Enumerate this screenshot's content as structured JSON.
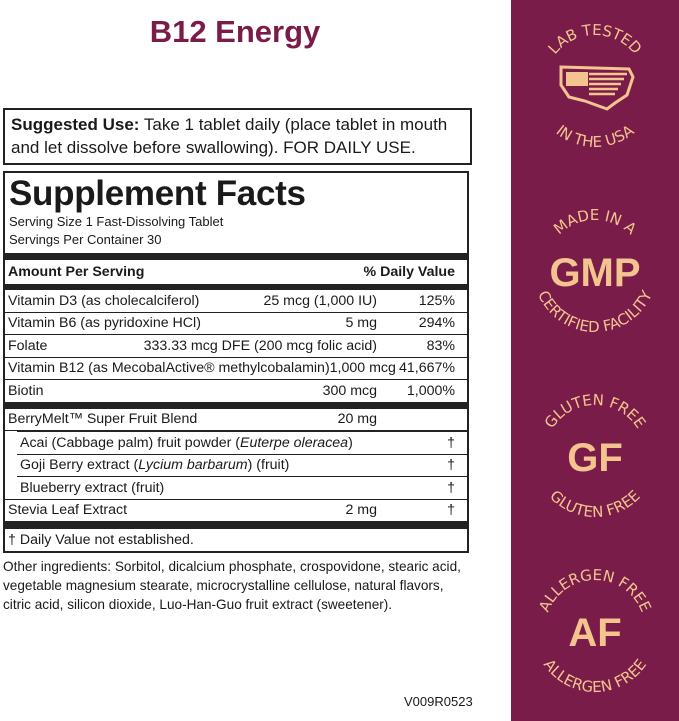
{
  "title": "B12 Energy",
  "suggested_use": {
    "label": "Suggested Use:",
    "text": " Take 1 tablet daily (place tablet in mouth and let dissolve before swallowing). FOR DAILY USE."
  },
  "facts": {
    "heading": "Supplement Facts",
    "serving_size": "Serving Size 1 Fast-Dissolving Tablet",
    "servings": "Servings Per Container 30",
    "col_amount": "Amount Per Serving",
    "col_dv": "% Daily Value",
    "vitamins": [
      {
        "name": "Vitamin D3 (as cholecalciferol)",
        "amount": "25 mcg (1,000 IU)",
        "dv": "125%"
      },
      {
        "name": "Vitamin B6 (as pyridoxine HCl)",
        "amount": "5 mg",
        "dv": "294%"
      },
      {
        "name": "Folate",
        "amount": "333.33 mcg DFE (200 mcg folic acid)",
        "dv": "83%"
      },
      {
        "name": "Vitamin B12 (as MecobalActive® methylcobalamin)",
        "amount": "1,000 mcg",
        "dv": "41,667%"
      },
      {
        "name": "Biotin",
        "amount": "300 mcg",
        "dv": "1,000%"
      }
    ],
    "blend": {
      "name": "BerryMelt™ Super Fruit Blend",
      "amount": "20 mg",
      "dv": ""
    },
    "blend_items": [
      {
        "name": "Acai (Cabbage palm) fruit powder (",
        "latin": "Euterpe oleracea",
        "rest": ")",
        "dv": "†"
      },
      {
        "name": "Goji Berry extract (",
        "latin": "Lycium barbarum",
        "rest": ") (fruit)",
        "dv": "†"
      },
      {
        "name": "Blueberry extract (fruit)",
        "latin": "",
        "rest": "",
        "dv": "†"
      }
    ],
    "stevia": {
      "name": "Stevia Leaf Extract",
      "amount": "2 mg",
      "dv": "†"
    },
    "footnote": "† Daily Value not established."
  },
  "other_ingredients": "Other ingredients: Sorbitol, dicalcium phosphate, crospovidone, stearic acid, vegetable magnesium stearate, microcrystalline cellulose, natural flavors, citric acid, silicon dioxide, Luo-Han-Guo fruit extract (sweetener).",
  "code": "V009R0523",
  "badges": [
    {
      "top": "LAB TESTED",
      "center": "",
      "bottom": "IN THE USA",
      "icon": "usa-flag-map-icon"
    },
    {
      "top": "MADE IN A",
      "center": "GMP",
      "bottom": "CERTIFIED FACILITY"
    },
    {
      "top": "GLUTEN FREE",
      "center": "GF",
      "bottom": "GLUTEN FREE"
    },
    {
      "top": "ALLERGEN FREE",
      "center": "AF",
      "bottom": "ALLERGEN FREE"
    }
  ],
  "colors": {
    "brand": "#7a1c4a",
    "badge": "#f3c48e"
  }
}
